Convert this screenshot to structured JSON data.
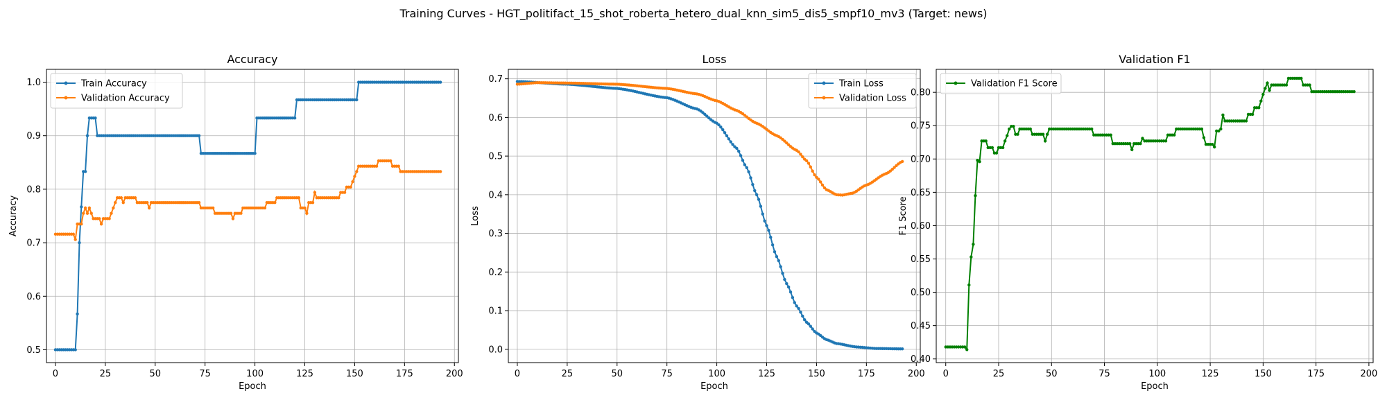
{
  "figure_title": "Training Curves - HGT_politifact_15_shot_roberta_hetero_dual_knn_sim5_dis5_smpf10_mv3 (Target: news)",
  "chart_data": [
    {
      "type": "line",
      "title": "Accuracy",
      "xlabel": "Epoch",
      "ylabel": "Accuracy",
      "xlim": [
        -4.5,
        202
      ],
      "ylim": [
        0.476,
        1.024
      ],
      "xticks": [
        0,
        25,
        50,
        75,
        100,
        125,
        150,
        175,
        200
      ],
      "yticks": [
        0.5,
        0.6,
        0.7,
        0.8,
        0.9,
        1.0
      ],
      "ytick_labels": [
        "0.5",
        "0.6",
        "0.7",
        "0.8",
        "0.9",
        "1.0"
      ],
      "grid": true,
      "legend": "upper-left",
      "epochs": 194,
      "series": [
        {
          "name": "Train Accuracy",
          "color": "#1f77b4",
          "segments": [
            [
              0,
              0.5
            ],
            [
              10,
              0.5
            ],
            [
              11,
              0.567
            ],
            [
              12,
              0.7
            ],
            [
              13,
              0.767
            ],
            [
              14,
              0.833
            ],
            [
              15,
              0.833
            ],
            [
              16,
              0.9
            ],
            [
              17,
              0.933
            ],
            [
              20,
              0.933
            ],
            [
              21,
              0.9
            ],
            [
              72,
              0.9
            ],
            [
              73,
              0.867
            ],
            [
              100,
              0.867
            ],
            [
              101,
              0.933
            ],
            [
              120,
              0.933
            ],
            [
              121,
              0.967
            ],
            [
              151,
              0.967
            ],
            [
              152,
              1.0
            ],
            [
              193,
              1.0
            ]
          ]
        },
        {
          "name": "Validation Accuracy",
          "color": "#ff7f0e",
          "segments": [
            [
              0,
              0.716
            ],
            [
              9,
              0.716
            ],
            [
              10,
              0.706
            ],
            [
              11,
              0.735
            ],
            [
              13,
              0.735
            ],
            [
              14,
              0.755
            ],
            [
              15,
              0.765
            ],
            [
              16,
              0.755
            ],
            [
              17,
              0.765
            ],
            [
              18,
              0.755
            ],
            [
              19,
              0.745
            ],
            [
              22,
              0.745
            ],
            [
              23,
              0.735
            ],
            [
              24,
              0.745
            ],
            [
              27,
              0.745
            ],
            [
              28,
              0.755
            ],
            [
              29,
              0.765
            ],
            [
              30,
              0.775
            ],
            [
              31,
              0.784
            ],
            [
              33,
              0.784
            ],
            [
              34,
              0.775
            ],
            [
              35,
              0.784
            ],
            [
              40,
              0.784
            ],
            [
              41,
              0.775
            ],
            [
              46,
              0.775
            ],
            [
              47,
              0.765
            ],
            [
              48,
              0.775
            ],
            [
              72,
              0.775
            ],
            [
              73,
              0.765
            ],
            [
              79,
              0.765
            ],
            [
              80,
              0.755
            ],
            [
              88,
              0.755
            ],
            [
              89,
              0.745
            ],
            [
              90,
              0.755
            ],
            [
              93,
              0.755
            ],
            [
              94,
              0.765
            ],
            [
              105,
              0.765
            ],
            [
              106,
              0.775
            ],
            [
              110,
              0.775
            ],
            [
              111,
              0.784
            ],
            [
              122,
              0.784
            ],
            [
              123,
              0.765
            ],
            [
              125,
              0.765
            ],
            [
              126,
              0.755
            ],
            [
              127,
              0.775
            ],
            [
              129,
              0.775
            ],
            [
              130,
              0.794
            ],
            [
              131,
              0.784
            ],
            [
              142,
              0.784
            ],
            [
              143,
              0.794
            ],
            [
              145,
              0.794
            ],
            [
              146,
              0.804
            ],
            [
              148,
              0.804
            ],
            [
              149,
              0.814
            ],
            [
              150,
              0.824
            ],
            [
              151,
              0.833
            ],
            [
              152,
              0.843
            ],
            [
              161,
              0.843
            ],
            [
              162,
              0.853
            ],
            [
              168,
              0.853
            ],
            [
              169,
              0.843
            ],
            [
              172,
              0.843
            ],
            [
              173,
              0.833
            ],
            [
              193,
              0.833
            ]
          ]
        }
      ]
    },
    {
      "type": "line",
      "title": "Loss",
      "xlabel": "Epoch",
      "ylabel": "Loss",
      "xlim": [
        -4.5,
        202
      ],
      "ylim": [
        -0.0345,
        0.7245
      ],
      "xticks": [
        0,
        25,
        50,
        75,
        100,
        125,
        150,
        175,
        200
      ],
      "yticks": [
        0.0,
        0.1,
        0.2,
        0.3,
        0.4,
        0.5,
        0.6,
        0.7
      ],
      "ytick_labels": [
        "0.0",
        "0.1",
        "0.2",
        "0.3",
        "0.4",
        "0.5",
        "0.6",
        "0.7"
      ],
      "grid": true,
      "legend": "upper-right",
      "epochs": 194,
      "series": [
        {
          "name": "Train Loss",
          "color": "#1f77b4",
          "knots": [
            [
              0,
              0.693
            ],
            [
              25,
              0.686
            ],
            [
              50,
              0.675
            ],
            [
              75,
              0.651
            ],
            [
              90,
              0.622
            ],
            [
              100,
              0.585
            ],
            [
              110,
              0.52
            ],
            [
              115,
              0.47
            ],
            [
              120,
              0.4
            ],
            [
              125,
              0.32
            ],
            [
              130,
              0.24
            ],
            [
              135,
              0.17
            ],
            [
              140,
              0.112
            ],
            [
              145,
              0.07
            ],
            [
              150,
              0.042
            ],
            [
              155,
              0.025
            ],
            [
              160,
              0.015
            ],
            [
              170,
              0.006
            ],
            [
              180,
              0.002
            ],
            [
              193,
              0.001
            ]
          ]
        },
        {
          "name": "Validation Loss",
          "color": "#ff7f0e",
          "knots": [
            [
              0,
              0.686
            ],
            [
              10,
              0.69
            ],
            [
              25,
              0.689
            ],
            [
              50,
              0.686
            ],
            [
              75,
              0.675
            ],
            [
              90,
              0.661
            ],
            [
              100,
              0.643
            ],
            [
              110,
              0.618
            ],
            [
              120,
              0.585
            ],
            [
              130,
              0.553
            ],
            [
              140,
              0.515
            ],
            [
              145,
              0.488
            ],
            [
              150,
              0.445
            ],
            [
              155,
              0.413
            ],
            [
              160,
              0.4
            ],
            [
              163,
              0.399
            ],
            [
              168,
              0.404
            ],
            [
              175,
              0.425
            ],
            [
              185,
              0.455
            ],
            [
              193,
              0.486
            ]
          ]
        }
      ]
    },
    {
      "type": "line",
      "title": "Validation F1",
      "xlabel": "Epoch",
      "ylabel": "F1 Score",
      "xlim": [
        -4.5,
        202
      ],
      "ylim": [
        0.3945,
        0.8345
      ],
      "xticks": [
        0,
        25,
        50,
        75,
        100,
        125,
        150,
        175,
        200
      ],
      "yticks": [
        0.4,
        0.45,
        0.5,
        0.55,
        0.6,
        0.65,
        0.7,
        0.75,
        0.8
      ],
      "ytick_labels": [
        "0.40",
        "0.45",
        "0.50",
        "0.55",
        "0.60",
        "0.65",
        "0.70",
        "0.75",
        "0.80"
      ],
      "grid": true,
      "legend": "upper-left",
      "epochs": 194,
      "series": [
        {
          "name": "Validation F1 Score",
          "color": "#008000",
          "segments": [
            [
              0,
              0.418
            ],
            [
              9,
              0.418
            ],
            [
              10,
              0.414
            ],
            [
              11,
              0.511
            ],
            [
              12,
              0.553
            ],
            [
              13,
              0.572
            ],
            [
              14,
              0.645
            ],
            [
              15,
              0.698
            ],
            [
              16,
              0.696
            ],
            [
              17,
              0.727
            ],
            [
              19,
              0.727
            ],
            [
              20,
              0.717
            ],
            [
              22,
              0.717
            ],
            [
              23,
              0.709
            ],
            [
              24,
              0.709
            ],
            [
              25,
              0.717
            ],
            [
              27,
              0.717
            ],
            [
              28,
              0.727
            ],
            [
              29,
              0.735
            ],
            [
              30,
              0.745
            ],
            [
              31,
              0.749
            ],
            [
              32,
              0.749
            ],
            [
              33,
              0.737
            ],
            [
              34,
              0.737
            ],
            [
              35,
              0.745
            ],
            [
              40,
              0.745
            ],
            [
              41,
              0.737
            ],
            [
              46,
              0.737
            ],
            [
              47,
              0.727
            ],
            [
              48,
              0.737
            ],
            [
              49,
              0.745
            ],
            [
              69,
              0.745
            ],
            [
              70,
              0.736
            ],
            [
              78,
              0.736
            ],
            [
              79,
              0.723
            ],
            [
              87,
              0.723
            ],
            [
              88,
              0.714
            ],
            [
              89,
              0.723
            ],
            [
              92,
              0.723
            ],
            [
              93,
              0.731
            ],
            [
              94,
              0.727
            ],
            [
              104,
              0.727
            ],
            [
              105,
              0.736
            ],
            [
              108,
              0.736
            ],
            [
              109,
              0.745
            ],
            [
              121,
              0.745
            ],
            [
              122,
              0.732
            ],
            [
              123,
              0.722
            ],
            [
              126,
              0.722
            ],
            [
              127,
              0.718
            ],
            [
              128,
              0.742
            ],
            [
              130,
              0.745
            ],
            [
              131,
              0.766
            ],
            [
              132,
              0.757
            ],
            [
              142,
              0.757
            ],
            [
              143,
              0.767
            ],
            [
              145,
              0.767
            ],
            [
              146,
              0.777
            ],
            [
              148,
              0.777
            ],
            [
              149,
              0.787
            ],
            [
              150,
              0.797
            ],
            [
              151,
              0.806
            ],
            [
              152,
              0.814
            ],
            [
              153,
              0.803
            ],
            [
              154,
              0.811
            ],
            [
              161,
              0.811
            ],
            [
              162,
              0.821
            ],
            [
              168,
              0.821
            ],
            [
              169,
              0.811
            ],
            [
              172,
              0.811
            ],
            [
              173,
              0.801
            ],
            [
              193,
              0.801
            ]
          ]
        }
      ]
    }
  ]
}
